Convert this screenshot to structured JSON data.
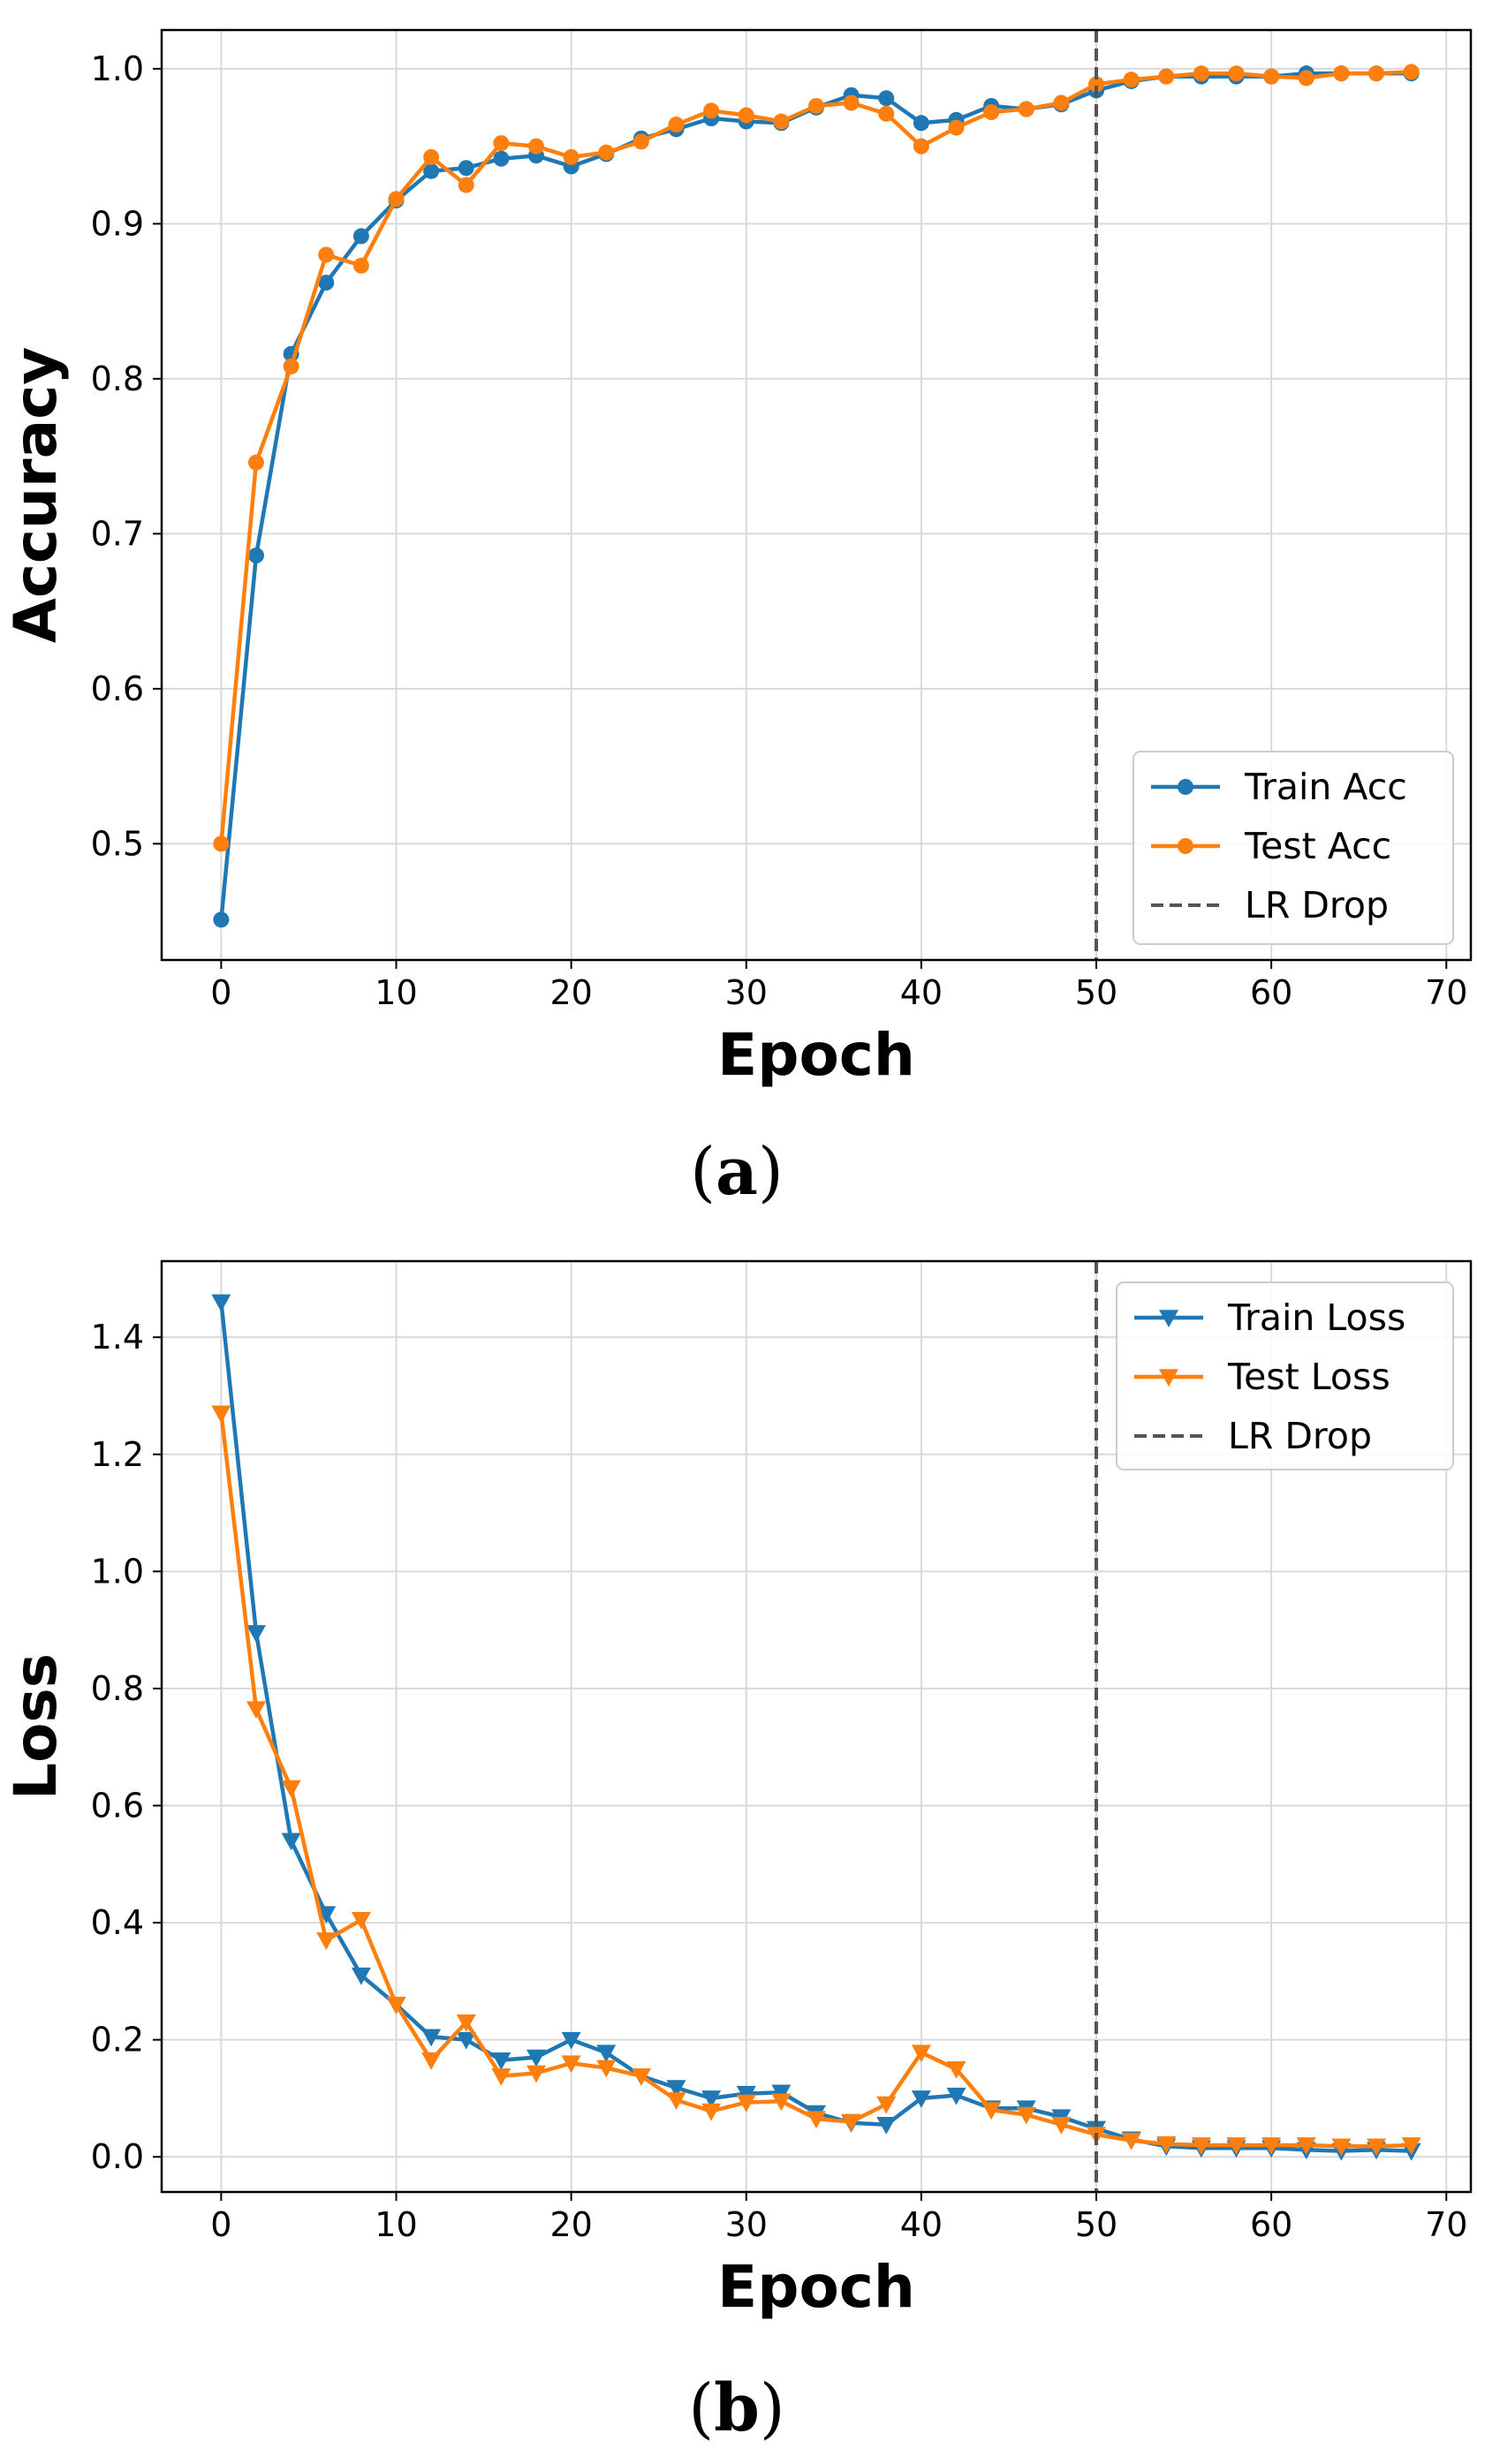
{
  "colors": {
    "train": "#1f77b4",
    "test": "#ff7f0e",
    "drop": "#555555",
    "grid": "#d9d9d9"
  },
  "chart_data": [
    {
      "type": "line",
      "caption": {
        "open": "(",
        "letter": "a",
        "close": ")"
      },
      "xlabel": "Epoch",
      "ylabel": "Accuracy",
      "xlim": [
        -3.4,
        71.4
      ],
      "ylim": [
        0.425,
        1.025
      ],
      "xticks": [
        0,
        10,
        20,
        30,
        40,
        50,
        60,
        70
      ],
      "xtick_labels": [
        "0",
        "10",
        "20",
        "30",
        "40",
        "50",
        "60",
        "70"
      ],
      "yticks": [
        0.5,
        0.6,
        0.7,
        0.8,
        0.9,
        1.0
      ],
      "ytick_labels": [
        "0.5",
        "0.6",
        "0.7",
        "0.8",
        "0.9",
        "1.0"
      ],
      "grid": true,
      "marker": "circle",
      "legend_position": "lower-right",
      "vline": {
        "x": 50,
        "name": "LR Drop"
      },
      "x": [
        0,
        2,
        4,
        6,
        8,
        10,
        12,
        14,
        16,
        18,
        20,
        22,
        24,
        26,
        28,
        30,
        32,
        34,
        36,
        38,
        40,
        42,
        44,
        46,
        48,
        50,
        52,
        54,
        56,
        58,
        60,
        62,
        64,
        66,
        68
      ],
      "series": [
        {
          "name": "Train Acc",
          "color_key": "train",
          "values": [
            0.451,
            0.686,
            0.816,
            0.862,
            0.892,
            0.915,
            0.934,
            0.936,
            0.942,
            0.944,
            0.937,
            0.945,
            0.955,
            0.961,
            0.968,
            0.966,
            0.965,
            0.975,
            0.983,
            0.981,
            0.965,
            0.967,
            0.976,
            0.974,
            0.977,
            0.986,
            0.992,
            0.995,
            0.995,
            0.995,
            0.995,
            0.997,
            0.997,
            0.997,
            0.997
          ]
        },
        {
          "name": "Test Acc",
          "color_key": "test",
          "values": [
            0.5,
            0.746,
            0.808,
            0.88,
            0.873,
            0.916,
            0.943,
            0.925,
            0.952,
            0.95,
            0.943,
            0.946,
            0.953,
            0.964,
            0.973,
            0.97,
            0.966,
            0.976,
            0.978,
            0.971,
            0.95,
            0.962,
            0.972,
            0.974,
            0.978,
            0.99,
            0.993,
            0.995,
            0.997,
            0.997,
            0.995,
            0.994,
            0.997,
            0.997,
            0.998
          ]
        }
      ]
    },
    {
      "type": "line",
      "caption": {
        "open": "(",
        "letter": "b",
        "close": ")"
      },
      "xlabel": "Epoch",
      "ylabel": "Loss",
      "xlim": [
        -3.4,
        71.4
      ],
      "ylim": [
        -0.06,
        1.53
      ],
      "xticks": [
        0,
        10,
        20,
        30,
        40,
        50,
        60,
        70
      ],
      "xtick_labels": [
        "0",
        "10",
        "20",
        "30",
        "40",
        "50",
        "60",
        "70"
      ],
      "yticks": [
        0.0,
        0.2,
        0.4,
        0.6,
        0.8,
        1.0,
        1.2,
        1.4
      ],
      "ytick_labels": [
        "0.0",
        "0.2",
        "0.4",
        "0.6",
        "0.8",
        "1.0",
        "1.2",
        "1.4"
      ],
      "grid": true,
      "marker": "triangle-down",
      "legend_position": "upper-right",
      "vline": {
        "x": 50,
        "name": "LR Drop"
      },
      "x": [
        0,
        2,
        4,
        6,
        8,
        10,
        12,
        14,
        16,
        18,
        20,
        22,
        24,
        26,
        28,
        30,
        32,
        34,
        36,
        38,
        40,
        42,
        44,
        46,
        48,
        50,
        52,
        54,
        56,
        58,
        60,
        62,
        64,
        66,
        68
      ],
      "series": [
        {
          "name": "Train Loss",
          "color_key": "train",
          "values": [
            1.46,
            0.895,
            0.54,
            0.415,
            0.31,
            0.26,
            0.205,
            0.2,
            0.165,
            0.17,
            0.2,
            0.178,
            0.138,
            0.118,
            0.1,
            0.108,
            0.11,
            0.075,
            0.058,
            0.055,
            0.1,
            0.105,
            0.083,
            0.083,
            0.068,
            0.048,
            0.03,
            0.018,
            0.015,
            0.015,
            0.015,
            0.012,
            0.01,
            0.012,
            0.01
          ]
        },
        {
          "name": "Test Loss",
          "color_key": "test",
          "values": [
            1.27,
            0.765,
            0.63,
            0.37,
            0.405,
            0.26,
            0.165,
            0.23,
            0.138,
            0.143,
            0.16,
            0.152,
            0.138,
            0.097,
            0.078,
            0.093,
            0.095,
            0.065,
            0.06,
            0.09,
            0.178,
            0.15,
            0.08,
            0.072,
            0.055,
            0.038,
            0.028,
            0.022,
            0.02,
            0.02,
            0.02,
            0.02,
            0.018,
            0.018,
            0.02
          ]
        }
      ]
    }
  ]
}
